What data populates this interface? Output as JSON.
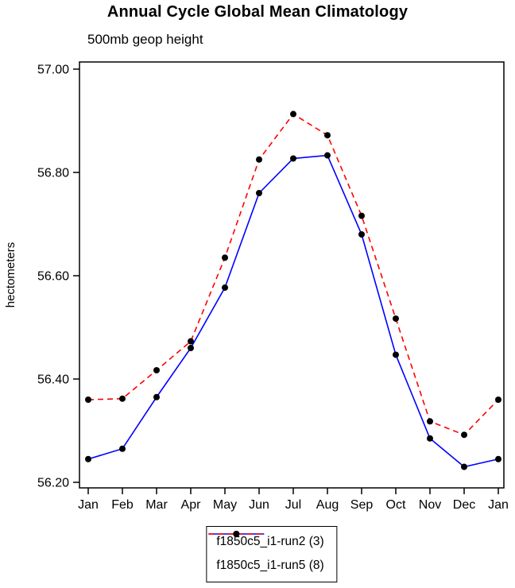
{
  "chart_data": {
    "type": "line",
    "title": "Annual Cycle Global Mean Climatology",
    "subtitle": "500mb geop height",
    "ylabel": "hectometers",
    "xlabel": "",
    "categories": [
      "Jan",
      "Feb",
      "Mar",
      "Apr",
      "May",
      "Jun",
      "Jul",
      "Aug",
      "Sep",
      "Oct",
      "Nov",
      "Dec",
      "Jan"
    ],
    "ylim": [
      56.2,
      57.0
    ],
    "ytick_step": 0.2,
    "grid": false,
    "legend_position": "bottom-center",
    "marker_color": "#000000",
    "axis_color": "#000000",
    "series": [
      {
        "name": "f1850c5_i1-run2 (3)",
        "color": "#0000ff",
        "dash": "",
        "marker": "circle",
        "values": [
          56.245,
          56.265,
          56.365,
          56.46,
          56.577,
          56.76,
          56.827,
          56.833,
          56.68,
          56.447,
          56.285,
          56.23,
          56.245
        ]
      },
      {
        "name": "f1850c5_i1-run5 (8)",
        "color": "#ff0000",
        "dash": "7,5",
        "marker": "circle",
        "values": [
          56.36,
          56.362,
          56.417,
          56.473,
          56.635,
          56.825,
          56.913,
          56.872,
          56.716,
          56.517,
          56.318,
          56.292,
          56.36
        ]
      }
    ]
  }
}
